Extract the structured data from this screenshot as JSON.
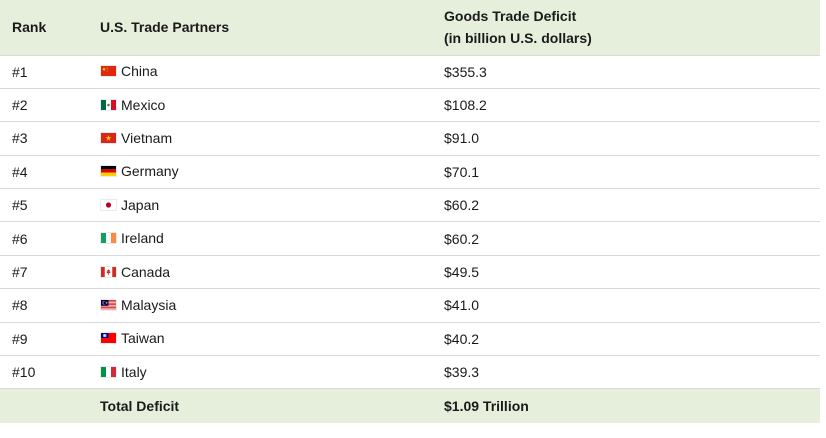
{
  "header": {
    "rank": "Rank",
    "partners": "U.S. Trade Partners",
    "deficit_line1": "Goods Trade Deficit",
    "deficit_line2": "(in billion U.S. dollars)"
  },
  "rows": [
    {
      "rank": "#1",
      "country": "China",
      "flag_icon": "china-flag-icon",
      "deficit": "$355.3"
    },
    {
      "rank": "#2",
      "country": "Mexico",
      "flag_icon": "mexico-flag-icon",
      "deficit": "$108.2"
    },
    {
      "rank": "#3",
      "country": "Vietnam",
      "flag_icon": "vietnam-flag-icon",
      "deficit": "$91.0"
    },
    {
      "rank": "#4",
      "country": "Germany",
      "flag_icon": "germany-flag-icon",
      "deficit": "$70.1"
    },
    {
      "rank": "#5",
      "country": "Japan",
      "flag_icon": "japan-flag-icon",
      "deficit": "$60.2"
    },
    {
      "rank": "#6",
      "country": "Ireland",
      "flag_icon": "ireland-flag-icon",
      "deficit": "$60.2"
    },
    {
      "rank": "#7",
      "country": "Canada",
      "flag_icon": "canada-flag-icon",
      "deficit": "$49.5"
    },
    {
      "rank": "#8",
      "country": "Malaysia",
      "flag_icon": "malaysia-flag-icon",
      "deficit": "$41.0"
    },
    {
      "rank": "#9",
      "country": "Taiwan",
      "flag_icon": "taiwan-flag-icon",
      "deficit": "$40.2"
    },
    {
      "rank": "#10",
      "country": "Italy",
      "flag_icon": "italy-flag-icon",
      "deficit": "$39.3"
    }
  ],
  "footer": {
    "rank": "",
    "label": "Total Deficit",
    "total": "$1.09 Trillion"
  },
  "colors": {
    "header_background": "#e6efdc",
    "row_divider": "#d9d9d9"
  }
}
